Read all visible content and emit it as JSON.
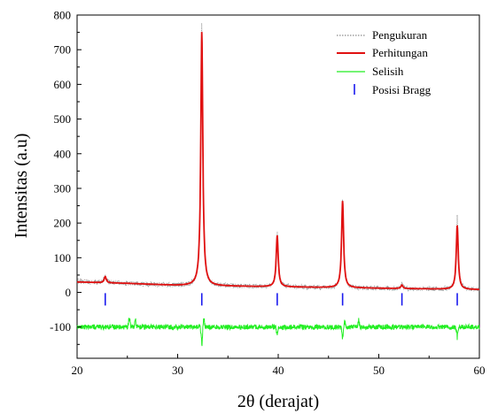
{
  "chart_data": {
    "type": "line",
    "title": "",
    "xlabel": "2θ (derajat)",
    "ylabel": "Intensitas (a.u)",
    "xlim": [
      20,
      60
    ],
    "ylim": [
      -190,
      800
    ],
    "x_ticks": [
      20,
      30,
      40,
      50,
      60
    ],
    "y_ticks": [
      -100,
      0,
      100,
      200,
      300,
      400,
      500,
      600,
      700,
      800
    ],
    "grid": false,
    "legend_position": "top-right",
    "legend": [
      "Pengukuran",
      "Perhitungan",
      "Selisih",
      "Posisi Bragg"
    ],
    "series": [
      {
        "name": "Pengukuran",
        "color": "#8c8c8c",
        "style": "dotted",
        "baseline": [
          [
            20,
            32
          ],
          [
            25,
            26
          ],
          [
            30,
            20
          ],
          [
            35,
            18
          ],
          [
            40,
            16
          ],
          [
            45,
            14
          ],
          [
            50,
            12
          ],
          [
            55,
            10
          ],
          [
            60,
            8
          ]
        ],
        "peaks": [
          {
            "x": 22.8,
            "height": 22,
            "width": 0.12
          },
          {
            "x": 32.4,
            "height": 760,
            "width": 0.12
          },
          {
            "x": 39.9,
            "height": 160,
            "width": 0.12
          },
          {
            "x": 46.4,
            "height": 258,
            "width": 0.12
          },
          {
            "x": 52.3,
            "height": 14,
            "width": 0.12
          },
          {
            "x": 57.8,
            "height": 208,
            "width": 0.12
          }
        ]
      },
      {
        "name": "Perhitungan",
        "color": "#e01010",
        "style": "solid",
        "baseline": [
          [
            20,
            30
          ],
          [
            25,
            26
          ],
          [
            30,
            20
          ],
          [
            35,
            18
          ],
          [
            40,
            16
          ],
          [
            45,
            14
          ],
          [
            50,
            12
          ],
          [
            55,
            10
          ],
          [
            60,
            8
          ]
        ],
        "peaks": [
          {
            "x": 22.8,
            "height": 18,
            "width": 0.12
          },
          {
            "x": 32.4,
            "height": 732,
            "width": 0.12
          },
          {
            "x": 39.9,
            "height": 148,
            "width": 0.12
          },
          {
            "x": 46.4,
            "height": 250,
            "width": 0.12
          },
          {
            "x": 52.3,
            "height": 10,
            "width": 0.12
          },
          {
            "x": 57.8,
            "height": 184,
            "width": 0.12
          }
        ]
      },
      {
        "name": "Selisih",
        "color": "#22ee22",
        "style": "solid",
        "offset": -100,
        "features": [
          {
            "x": 25.2,
            "dy": 35
          },
          {
            "x": 25.8,
            "dy": 20
          },
          {
            "x": 32.4,
            "dy": -70
          },
          {
            "x": 32.6,
            "dy": 30
          },
          {
            "x": 39.9,
            "dy": -25
          },
          {
            "x": 46.4,
            "dy": -45
          },
          {
            "x": 46.6,
            "dy": 20
          },
          {
            "x": 48.0,
            "dy": 25
          },
          {
            "x": 57.8,
            "dy": -30
          }
        ]
      }
    ],
    "bragg_positions": [
      22.8,
      32.4,
      39.9,
      46.4,
      52.3,
      57.8
    ],
    "bragg_y": -20,
    "bragg_color": "#1a1aee"
  }
}
